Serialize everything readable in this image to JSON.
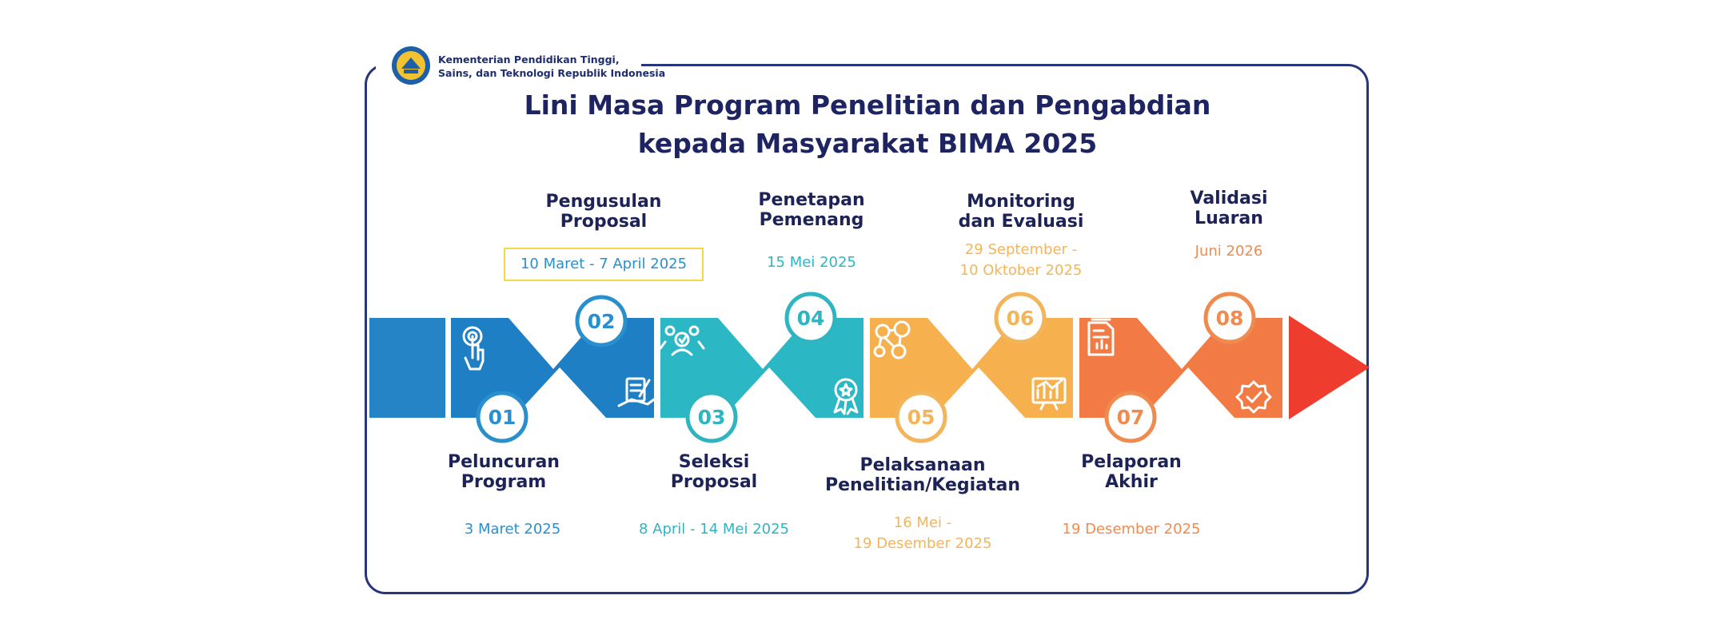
{
  "header": {
    "ministry": "Kementerian Pendidikan Tinggi,\nSains, dan Teknologi Republik Indonesia",
    "title_line1": "Lini Masa Program Penelitian dan Pengabdian",
    "title_line2": "kepada Masyarakat  BIMA 2025"
  },
  "colors": {
    "frame": "#27357a",
    "title": "#1e2461",
    "stage_colors": [
      "#1e7fc4",
      "#1e7fc4",
      "#2bb8c4",
      "#2bb8c4",
      "#f7b04e",
      "#f7b04e",
      "#f27a45",
      "#f27a45"
    ],
    "arrow": "#ee3c2f",
    "highlight": "#f4d948"
  },
  "steps": [
    {
      "number": "01",
      "label": "Peluncuran\nProgram",
      "date": "3 Maret 2025",
      "icon": "touch-icon"
    },
    {
      "number": "02",
      "label": "Pengusulan\nProposal",
      "date": "10 Maret - 7 April 2025",
      "icon": "document-sign-icon"
    },
    {
      "number": "03",
      "label": "Seleksi\nProposal",
      "date": "8 April - 14 Mei 2025",
      "icon": "team-selection-icon"
    },
    {
      "number": "04",
      "label": "Penetapan\nPemenang",
      "date": "15 Mei 2025",
      "icon": "award-ribbon-icon"
    },
    {
      "number": "05",
      "label": "Pelaksanaan\nPenelitian/Kegiatan",
      "date": "16 Mei -\n19 Desember 2025",
      "icon": "research-network-icon"
    },
    {
      "number": "06",
      "label": "Monitoring\ndan Evaluasi",
      "date": "29 September -\n10 Oktober 2025",
      "icon": "monitor-chart-icon"
    },
    {
      "number": "07",
      "label": "Pelaporan\nAkhir",
      "date": "19 Desember 2025",
      "icon": "report-document-icon"
    },
    {
      "number": "08",
      "label": "Validasi\nLuaran",
      "date": "Juni 2026",
      "icon": "verified-badge-icon"
    }
  ]
}
